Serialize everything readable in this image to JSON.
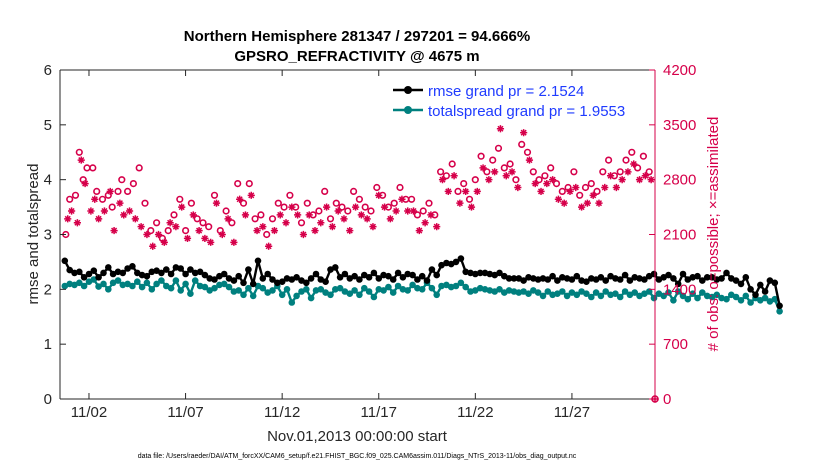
{
  "chart_data": {
    "type": "line",
    "title": "Northern Hemisphere 281347 / 297201 = 94.666%",
    "subtitle": "GPSRO_REFRACTIVITY @ 4675 m",
    "xlabel": "Nov.01,2013 00:00:00 start",
    "ylabel": "rmse and totalspread",
    "y2label": "# of obs: o=possible; ×=assimilated",
    "footnote": "data file: /Users/raeder/DAI/ATM_forcXX/CAM6_setup/f.e21.FHIST_BGC.f09_025.CAM6assim.011/Diags_NTrS_2013-11/obs_diag_output.nc",
    "xlim": [
      0.5,
      31.3
    ],
    "ylim": [
      0,
      6
    ],
    "y2lim": [
      0,
      4200
    ],
    "x_tick_values": [
      2,
      7,
      12,
      17,
      22,
      27
    ],
    "x_tick_labels": [
      "11/02",
      "11/07",
      "11/12",
      "11/17",
      "11/22",
      "11/27"
    ],
    "y_tick_labels": [
      "0",
      "1",
      "2",
      "3",
      "4",
      "5",
      "6"
    ],
    "y2_tick_labels": [
      "0",
      "700",
      "1400",
      "2100",
      "2800",
      "3500",
      "4200"
    ],
    "colors": {
      "rmse": "#000000",
      "spread": "#00807f",
      "obs": "#d6004a",
      "legend_text": "#1f3bff"
    },
    "legend": [
      {
        "name": "rmse grand pr = 2.1524",
        "marker": "filled-circle",
        "color": "#000000"
      },
      {
        "name": "totalspread grand pr = 1.9553",
        "marker": "filled-circle",
        "color": "#00807f"
      }
    ],
    "series": [
      {
        "name": "rmse",
        "axis": "left",
        "x_start": 0.75,
        "x_step": 0.25,
        "values": [
          2.52,
          2.35,
          2.3,
          2.32,
          2.22,
          2.28,
          2.34,
          2.22,
          2.3,
          2.4,
          2.28,
          2.32,
          2.3,
          2.38,
          2.42,
          2.3,
          2.26,
          2.24,
          2.32,
          2.34,
          2.3,
          2.36,
          2.28,
          2.4,
          2.38,
          2.28,
          2.36,
          2.3,
          2.32,
          2.26,
          2.2,
          2.18,
          2.24,
          2.28,
          2.2,
          2.16,
          2.24,
          2.12,
          2.36,
          2.1,
          2.52,
          2.2,
          2.28,
          2.18,
          2.12,
          2.14,
          2.2,
          2.18,
          2.22,
          2.16,
          2.12,
          2.2,
          2.28,
          2.18,
          2.14,
          2.36,
          2.4,
          2.22,
          2.28,
          2.2,
          2.24,
          2.18,
          2.26,
          2.22,
          2.3,
          2.2,
          2.26,
          2.24,
          2.18,
          2.3,
          2.22,
          2.28,
          2.26,
          2.18,
          2.24,
          2.16,
          2.36,
          2.26,
          2.44,
          2.48,
          2.46,
          2.5,
          2.56,
          2.32,
          2.3,
          2.28,
          2.3,
          2.3,
          2.28,
          2.26,
          2.3,
          2.24,
          2.2,
          2.2,
          2.2,
          2.16,
          2.22,
          2.2,
          2.18,
          2.2,
          2.18,
          2.24,
          2.16,
          2.22,
          2.2,
          2.18,
          2.24,
          2.16,
          2.14,
          2.2,
          2.18,
          2.22,
          2.16,
          2.24,
          2.2,
          2.18,
          2.26,
          2.16,
          2.22,
          2.2,
          2.18,
          2.24,
          2.28,
          2.18,
          2.22,
          2.26,
          2.2,
          2.1,
          2.28,
          2.18,
          2.22,
          2.24,
          2.16,
          2.22,
          2.22,
          2.18,
          2.2,
          2.3,
          2.2,
          2.16,
          2.1,
          2.22,
          2.0,
          1.9,
          2.08,
          1.96,
          2.16,
          2.12,
          1.7
        ]
      },
      {
        "name": "totalspread",
        "axis": "left",
        "x_start": 0.75,
        "x_step": 0.25,
        "values": [
          2.06,
          2.1,
          2.08,
          2.12,
          2.06,
          2.14,
          2.18,
          2.05,
          2.1,
          2.0,
          2.12,
          2.16,
          2.08,
          2.1,
          2.06,
          2.14,
          2.04,
          2.12,
          2.0,
          2.1,
          2.16,
          2.06,
          2.02,
          2.16,
          1.98,
          2.1,
          1.92,
          2.16,
          2.06,
          2.04,
          1.98,
          2.02,
          2.08,
          2.1,
          2.04,
          1.96,
          1.98,
          1.9,
          2.02,
          1.88,
          2.06,
          2.02,
          1.94,
          1.98,
          2.06,
          1.9,
          2.0,
          1.76,
          1.88,
          1.96,
          2.0,
          1.84,
          1.98,
          2.0,
          1.94,
          1.9,
          2.0,
          2.02,
          1.96,
          1.92,
          1.98,
          1.9,
          2.02,
          1.96,
          1.86,
          2.0,
          1.98,
          2.04,
          1.94,
          2.06,
          2.0,
          1.98,
          2.08,
          2.02,
          2.0,
          2.12,
          2.02,
          1.9,
          2.06,
          2.08,
          2.04,
          2.06,
          2.12,
          2.04,
          1.96,
          1.98,
          2.02,
          2.0,
          1.98,
          1.96,
          2.0,
          1.94,
          1.98,
          1.96,
          1.94,
          1.96,
          1.92,
          1.98,
          1.94,
          1.88,
          1.96,
          1.9,
          1.92,
          1.96,
          1.88,
          1.94,
          1.9,
          1.96,
          1.92,
          1.86,
          1.94,
          1.88,
          1.96,
          1.9,
          1.92,
          1.86,
          1.96,
          1.9,
          1.94,
          1.88,
          1.92,
          1.96,
          1.84,
          1.92,
          1.88,
          1.94,
          1.8,
          1.96,
          1.88,
          1.82,
          1.92,
          1.84,
          1.94,
          1.88,
          1.86,
          1.9,
          1.84,
          1.82,
          1.9,
          1.86,
          1.8,
          1.88,
          1.76,
          1.84,
          1.8,
          1.84,
          1.78,
          1.82,
          1.6
        ]
      },
      {
        "name": "possible",
        "axis": "right",
        "marker": "circle",
        "x": [
          0.8,
          1.0,
          1.3,
          1.5,
          1.7,
          1.9,
          2.2,
          2.4,
          2.7,
          3.0,
          3.2,
          3.5,
          3.7,
          4.0,
          4.3,
          4.6,
          4.9,
          5.2,
          5.5,
          5.8,
          6.1,
          6.4,
          6.7,
          7.0,
          7.3,
          7.6,
          7.9,
          8.2,
          8.5,
          8.8,
          9.1,
          9.4,
          9.7,
          10.0,
          10.3,
          10.6,
          10.9,
          11.2,
          11.5,
          11.8,
          12.1,
          12.4,
          12.7,
          13.0,
          13.3,
          13.6,
          13.9,
          14.2,
          14.5,
          14.8,
          15.1,
          15.4,
          15.7,
          16.0,
          16.3,
          16.6,
          16.9,
          17.2,
          17.5,
          17.8,
          18.1,
          18.4,
          18.7,
          19.0,
          19.3,
          19.6,
          19.9,
          20.2,
          20.5,
          20.8,
          21.1,
          21.4,
          21.7,
          22.0,
          22.3,
          22.6,
          22.9,
          23.2,
          23.5,
          23.8,
          24.1,
          24.4,
          24.7,
          25.0,
          25.3,
          25.6,
          25.9,
          26.2,
          26.5,
          26.8,
          27.1,
          27.4,
          27.7,
          28.0,
          28.3,
          28.6,
          28.9,
          29.2,
          29.5,
          29.8,
          30.1,
          30.4,
          30.7,
          31.0
        ],
        "values": [
          2100,
          2550,
          2600,
          3150,
          2800,
          2950,
          2950,
          2650,
          2550,
          2600,
          2450,
          2650,
          2800,
          2650,
          2750,
          2950,
          2500,
          2150,
          2250,
          2050,
          2150,
          2350,
          2550,
          2150,
          2500,
          2300,
          2250,
          2200,
          2600,
          2150,
          2400,
          2250,
          2750,
          2500,
          2750,
          2300,
          2350,
          2100,
          2300,
          2500,
          2450,
          2600,
          2450,
          2250,
          2500,
          2350,
          2400,
          2650,
          2300,
          2500,
          2450,
          2400,
          2650,
          2550,
          2450,
          2400,
          2700,
          2600,
          2450,
          2500,
          2700,
          2550,
          2550,
          2350,
          2400,
          2500,
          2350,
          2900,
          2850,
          3000,
          2650,
          2750,
          2550,
          2800,
          3100,
          2900,
          3050,
          3200,
          2950,
          3000,
          2800,
          3250,
          3150,
          2900,
          2800,
          2850,
          2950,
          2750,
          2650,
          2700,
          2900,
          2600,
          2700,
          2750,
          2650,
          2900,
          3050,
          2850,
          2900,
          3050,
          3150,
          2950,
          3100,
          2900
        ]
      },
      {
        "name": "assimilated",
        "axis": "right",
        "marker": "asterisk",
        "x": [
          0.9,
          1.1,
          1.4,
          1.6,
          1.8,
          2.1,
          2.3,
          2.5,
          2.8,
          3.1,
          3.3,
          3.6,
          3.8,
          4.1,
          4.4,
          4.7,
          5.0,
          5.3,
          5.6,
          5.9,
          6.2,
          6.5,
          6.8,
          7.1,
          7.4,
          7.7,
          8.0,
          8.3,
          8.6,
          8.9,
          9.2,
          9.5,
          9.8,
          10.1,
          10.4,
          10.7,
          11.0,
          11.3,
          11.6,
          11.9,
          12.2,
          12.5,
          12.8,
          13.1,
          13.4,
          13.7,
          14.0,
          14.3,
          14.6,
          14.9,
          15.2,
          15.5,
          15.8,
          16.1,
          16.4,
          16.7,
          17.0,
          17.3,
          17.6,
          17.9,
          18.2,
          18.5,
          18.8,
          19.1,
          19.4,
          19.7,
          20.0,
          20.3,
          20.6,
          20.9,
          21.2,
          21.5,
          21.8,
          22.1,
          22.4,
          22.7,
          23.0,
          23.3,
          23.6,
          23.9,
          24.2,
          24.5,
          24.8,
          25.1,
          25.4,
          25.7,
          26.0,
          26.3,
          26.6,
          26.9,
          27.2,
          27.5,
          27.8,
          28.1,
          28.4,
          28.7,
          29.0,
          29.3,
          29.6,
          29.9,
          30.2,
          30.5,
          30.8,
          31.1
        ],
        "values": [
          2300,
          2400,
          2250,
          3050,
          2750,
          2400,
          2550,
          2300,
          2400,
          2650,
          2150,
          2500,
          2350,
          2400,
          2300,
          2200,
          2100,
          1950,
          2100,
          2000,
          2250,
          2200,
          2450,
          2050,
          2350,
          2150,
          2050,
          2000,
          2500,
          2100,
          2300,
          2000,
          2550,
          2350,
          2600,
          2150,
          2200,
          1950,
          2150,
          2350,
          2250,
          2450,
          2350,
          2100,
          2350,
          2150,
          2250,
          2450,
          2200,
          2400,
          2300,
          2150,
          2450,
          2350,
          2300,
          2200,
          2600,
          2450,
          2300,
          2400,
          2550,
          2400,
          2400,
          2150,
          2250,
          2350,
          2200,
          2800,
          2650,
          2850,
          2500,
          2650,
          2450,
          2650,
          2950,
          2800,
          2900,
          3450,
          2850,
          2900,
          2700,
          3400,
          3050,
          2750,
          2650,
          2750,
          2800,
          2550,
          2500,
          2650,
          2700,
          2450,
          2500,
          2600,
          2500,
          2700,
          2850,
          2700,
          2800,
          2900,
          3000,
          2800,
          2850,
          2800
        ]
      }
    ]
  }
}
